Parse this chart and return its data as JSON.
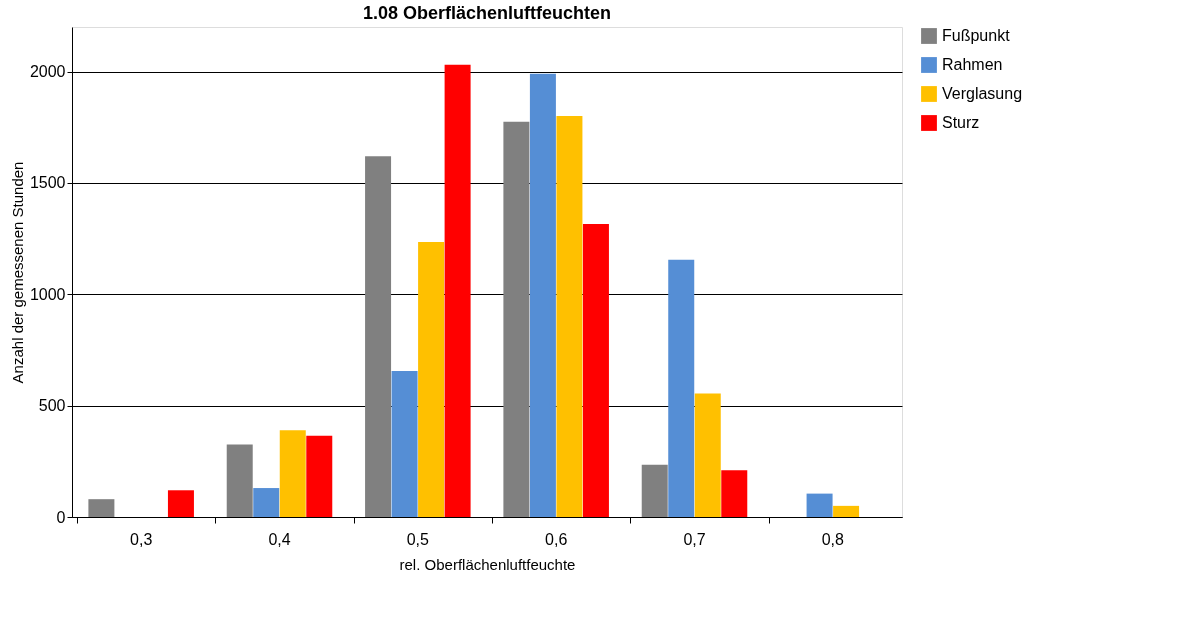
{
  "chart_data": {
    "type": "bar",
    "title": "1.08 Oberflächenluftfeuchten",
    "xlabel": "rel. Oberflächenluftfeuchte",
    "ylabel": "Anzahl der gemessenen Stunden",
    "categories": [
      "0,3",
      "0,4",
      "0,5",
      "0,6",
      "0,7",
      "0,8"
    ],
    "series": [
      {
        "name": "Fußpunkt",
        "color": "#808080",
        "values": [
          80,
          325,
          1620,
          1775,
          235,
          0
        ]
      },
      {
        "name": "Rahmen",
        "color": "#558ed5",
        "values": [
          0,
          130,
          655,
          1990,
          1155,
          105
        ]
      },
      {
        "name": "Verglasung",
        "color": "#ffc000",
        "values": [
          0,
          390,
          1235,
          1800,
          555,
          50
        ]
      },
      {
        "name": "Sturz",
        "color": "#ff0000",
        "values": [
          120,
          365,
          2030,
          1315,
          210,
          0
        ]
      }
    ],
    "ylim": [
      0,
      2200
    ],
    "yticks": [
      0,
      500,
      1000,
      1500,
      2000
    ],
    "grid": "y",
    "legend": "right"
  }
}
